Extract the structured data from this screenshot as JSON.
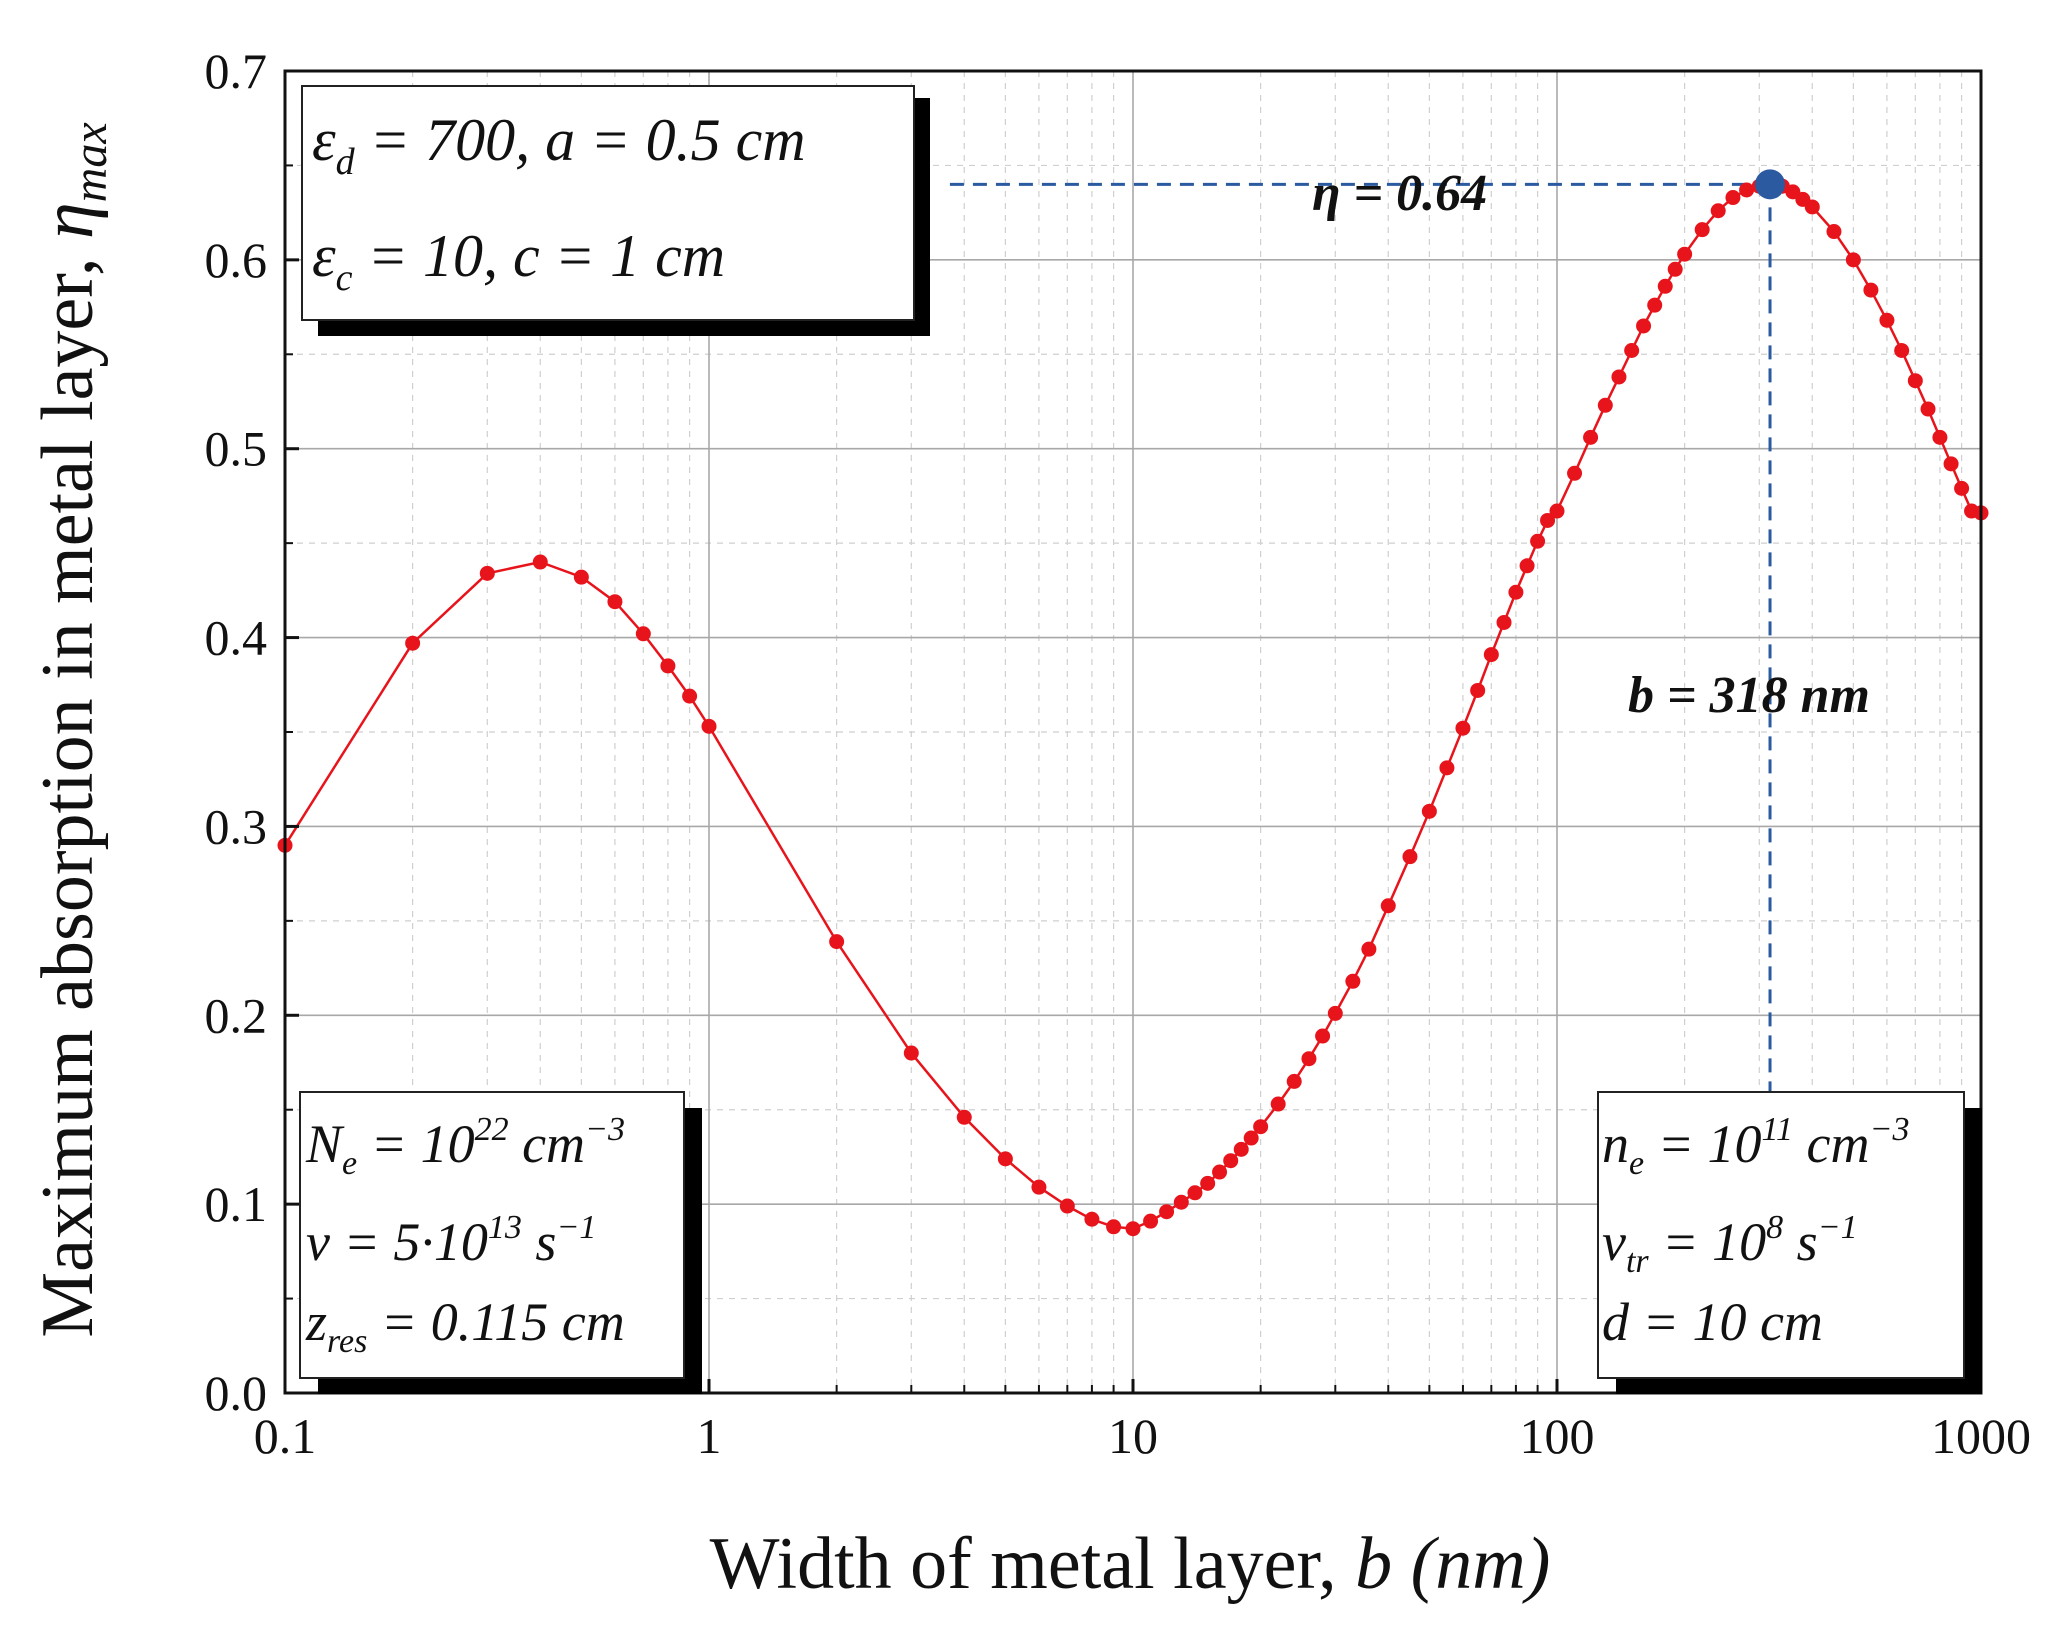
{
  "chart_data": {
    "type": "scatter",
    "xscale": "log",
    "xlim": [
      0.1,
      1000
    ],
    "ylim": [
      0.0,
      0.7
    ],
    "xlabel_main": "Width of metal layer, ",
    "xlabel_var": "b (nm)",
    "ylabel_main": "Maximum absorption in metal layer, ",
    "ylabel_var": "η",
    "ylabel_sub": "max",
    "x_ticks": [
      "0.1",
      "1",
      "10",
      "100",
      "1000"
    ],
    "y_ticks": [
      "0.0",
      "0.1",
      "0.2",
      "0.3",
      "0.4",
      "0.5",
      "0.6",
      "0.7"
    ],
    "series": [
      {
        "name": "η_max(b)",
        "color": "#e8141c",
        "marker": "circle",
        "points": [
          [
            0.1,
            0.29
          ],
          [
            0.2,
            0.397
          ],
          [
            0.3,
            0.434
          ],
          [
            0.4,
            0.44
          ],
          [
            0.5,
            0.432
          ],
          [
            0.6,
            0.419
          ],
          [
            0.7,
            0.402
          ],
          [
            0.8,
            0.385
          ],
          [
            0.9,
            0.369
          ],
          [
            1.0,
            0.353
          ],
          [
            2,
            0.239
          ],
          [
            3,
            0.18
          ],
          [
            4,
            0.146
          ],
          [
            5,
            0.124
          ],
          [
            6,
            0.109
          ],
          [
            7,
            0.099
          ],
          [
            8,
            0.092
          ],
          [
            9,
            0.088
          ],
          [
            10,
            0.087
          ],
          [
            11,
            0.091
          ],
          [
            12,
            0.096
          ],
          [
            13,
            0.101
          ],
          [
            14,
            0.106
          ],
          [
            15,
            0.111
          ],
          [
            16,
            0.117
          ],
          [
            17,
            0.123
          ],
          [
            18,
            0.129
          ],
          [
            19,
            0.135
          ],
          [
            20,
            0.141
          ],
          [
            22,
            0.153
          ],
          [
            24,
            0.165
          ],
          [
            26,
            0.177
          ],
          [
            28,
            0.189
          ],
          [
            30,
            0.201
          ],
          [
            33,
            0.218
          ],
          [
            36,
            0.235
          ],
          [
            40,
            0.258
          ],
          [
            45,
            0.284
          ],
          [
            50,
            0.308
          ],
          [
            55,
            0.331
          ],
          [
            60,
            0.352
          ],
          [
            65,
            0.372
          ],
          [
            70,
            0.391
          ],
          [
            75,
            0.408
          ],
          [
            80,
            0.424
          ],
          [
            85,
            0.438
          ],
          [
            90,
            0.451
          ],
          [
            95,
            0.462
          ],
          [
            100,
            0.467
          ],
          [
            110,
            0.487
          ],
          [
            120,
            0.506
          ],
          [
            130,
            0.523
          ],
          [
            140,
            0.538
          ],
          [
            150,
            0.552
          ],
          [
            160,
            0.565
          ],
          [
            170,
            0.576
          ],
          [
            180,
            0.586
          ],
          [
            190,
            0.595
          ],
          [
            200,
            0.603
          ],
          [
            220,
            0.616
          ],
          [
            240,
            0.626
          ],
          [
            260,
            0.633
          ],
          [
            280,
            0.637
          ],
          [
            300,
            0.639
          ],
          [
            318,
            0.64
          ],
          [
            340,
            0.639
          ],
          [
            360,
            0.636
          ],
          [
            380,
            0.632
          ],
          [
            400,
            0.628
          ],
          [
            450,
            0.615
          ],
          [
            500,
            0.6
          ],
          [
            550,
            0.584
          ],
          [
            600,
            0.568
          ],
          [
            650,
            0.552
          ],
          [
            700,
            0.536
          ],
          [
            750,
            0.521
          ],
          [
            800,
            0.506
          ],
          [
            850,
            0.492
          ],
          [
            900,
            0.479
          ],
          [
            950,
            0.467
          ],
          [
            1000,
            0.466
          ]
        ]
      }
    ],
    "highlight": {
      "x": 318,
      "y": 0.64,
      "color": "#2b5aa0"
    },
    "annotations": {
      "eta_label": "η = 0.64",
      "b_label": "b = 318 nm"
    },
    "info_boxes": {
      "top_left": {
        "line1": "ε",
        "line1_sub": "d",
        "line1_rest": " = 700, a = 0.5 cm",
        "line2": "ε",
        "line2_sub": "c",
        "line2_rest": " = 10, c = 1 cm"
      },
      "bottom_left": {
        "l1_a": "N",
        "l1_sub": "e",
        "l1_b": " = 10",
        "l1_sup": "22",
        "l1_c": " cm",
        "l1_sup2": "−3",
        "l2_a": "ν = 5·10",
        "l2_sup": "13",
        "l2_b": " s",
        "l2_sup2": "−1",
        "l3_a": "z",
        "l3_sub": "res",
        "l3_b": " = 0.115 cm"
      },
      "bottom_right": {
        "l1_a": "n",
        "l1_sub": "e",
        "l1_b": " = 10",
        "l1_sup": "11",
        "l1_c": " cm",
        "l1_sup2": "−3",
        "l2_a": "ν",
        "l2_sub": "tr",
        "l2_b": " = 10",
        "l2_sup": "8",
        "l2_c": " s",
        "l2_sup2": "−1",
        "l3": "d = 10 cm"
      }
    }
  }
}
